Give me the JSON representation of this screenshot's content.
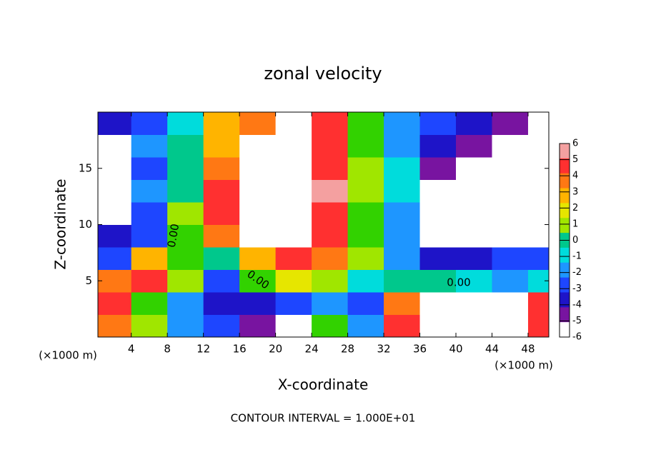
{
  "chart_data": {
    "type": "heatmap",
    "title": "zonal velocity",
    "x_label": "X-coordinate",
    "y_label": "Z-coordinate",
    "x_unit": "(×1000 m)",
    "footer": "CONTOUR INTERVAL = 1.000E+01",
    "contour_labels": [
      "0.00",
      "0.00",
      "0.00"
    ],
    "xlim": [
      0.3,
      50.3
    ],
    "ylim": [
      0,
      20
    ],
    "xticks": [
      4,
      8,
      12,
      16,
      20,
      24,
      28,
      32,
      36,
      40,
      44,
      48
    ],
    "yticks": [
      5,
      10,
      15
    ],
    "x": [
      2,
      6,
      10,
      14,
      18,
      22,
      26,
      30,
      34,
      38,
      42,
      46,
      50
    ],
    "y": [
      1,
      3,
      5,
      7,
      9,
      11,
      13,
      15,
      17,
      19
    ],
    "z": [
      [
        4,
        1,
        -3,
        -4,
        -6,
        -7,
        0,
        -3,
        5,
        8,
        9,
        8,
        5
      ],
      [
        5,
        0,
        -3,
        -5,
        -5,
        -4,
        -3,
        -4,
        4,
        7,
        8,
        7,
        5
      ],
      [
        4,
        5,
        1,
        -4,
        0,
        2,
        1,
        -2,
        -1,
        -1,
        -2,
        -3,
        -2
      ],
      [
        -4,
        3,
        0,
        -1,
        3,
        5,
        4,
        1,
        -3,
        -5,
        -5,
        -4,
        -4
      ],
      [
        -5,
        -4,
        0,
        4,
        7,
        8,
        5,
        0,
        -3,
        -7,
        -8,
        -8,
        -8
      ],
      [
        8,
        -4,
        1,
        5,
        8,
        10,
        5,
        0,
        -3,
        -8,
        -9,
        -7,
        -8
      ],
      [
        8,
        -3,
        -1,
        5,
        8,
        10,
        6,
        1,
        -2,
        -7,
        -9,
        -8,
        -7
      ],
      [
        8,
        -4,
        -1,
        4,
        8,
        9,
        5,
        1,
        -2,
        -6,
        -8,
        -8,
        -8
      ],
      [
        8,
        -3,
        -1,
        3,
        8,
        8,
        5,
        0,
        -3,
        -5,
        -6,
        -7,
        -8
      ],
      [
        -5,
        -4,
        -2,
        3,
        4,
        8,
        5,
        0,
        -3,
        -4,
        -5,
        -6,
        -7
      ]
    ],
    "colorbar_ticks": [
      6,
      5,
      4,
      3,
      2,
      1,
      0,
      -1,
      -2,
      -3,
      -4,
      -5,
      -6
    ],
    "colors": [
      "#f4a0a0",
      "#ff3030",
      "#ff7814",
      "#ffb400",
      "#e6e600",
      "#a0e600",
      "#32d200",
      "#00c88c",
      "#00dcdc",
      "#1e96ff",
      "#1e46ff",
      "#1e14c8",
      "#7814a0"
    ]
  }
}
